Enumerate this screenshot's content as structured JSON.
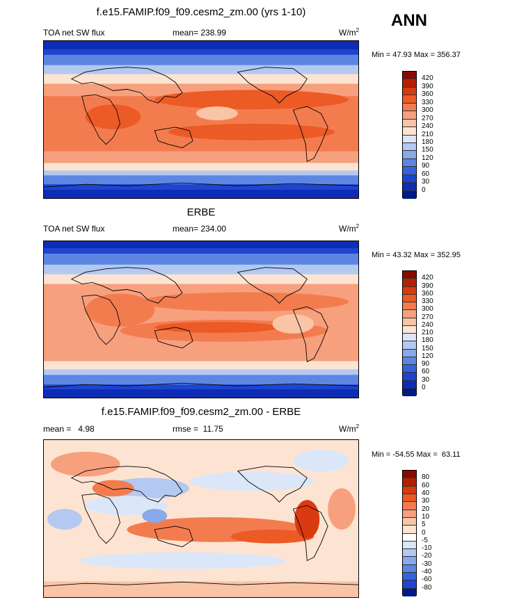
{
  "season": "ANN",
  "panels": [
    {
      "id": "model",
      "title": "f.e15.FAMIP.f09_f09.cesm2_zm.00 (yrs 1-10)",
      "variable": "TOA net SW flux",
      "stat_text": "mean= 238.99",
      "units": "W/m",
      "units_sup": "2",
      "minmax": "Min =  47.93 Max = 356.37",
      "colorbar": {
        "labels": [
          "420",
          "390",
          "360",
          "330",
          "300",
          "270",
          "240",
          "210",
          "180",
          "150",
          "120",
          "90",
          "60",
          "30",
          "0"
        ],
        "colors": [
          "#8b0a00",
          "#b71f02",
          "#d93a0f",
          "#ec5a26",
          "#f37c4f",
          "#f7a07e",
          "#fac4a7",
          "#fde4d2",
          "#dbe6f8",
          "#b3c9f1",
          "#88a9ea",
          "#5d86e3",
          "#3563dc",
          "#1d45d0",
          "#0e2cb5",
          "#001a86"
        ]
      }
    },
    {
      "id": "obs",
      "title": "ERBE",
      "variable": "TOA net SW flux",
      "stat_text": "mean= 234.00",
      "units": "W/m",
      "units_sup": "2",
      "minmax": "Min =  43.32 Max = 352.95",
      "colorbar": {
        "labels": [
          "420",
          "390",
          "360",
          "330",
          "300",
          "270",
          "240",
          "210",
          "180",
          "150",
          "120",
          "90",
          "60",
          "30",
          "0"
        ],
        "colors": [
          "#8b0a00",
          "#b71f02",
          "#d93a0f",
          "#ec5a26",
          "#f37c4f",
          "#f7a07e",
          "#fac4a7",
          "#fde4d2",
          "#dbe6f8",
          "#b3c9f1",
          "#88a9ea",
          "#5d86e3",
          "#3563dc",
          "#1d45d0",
          "#0e2cb5",
          "#001a86"
        ]
      }
    },
    {
      "id": "diff",
      "title": "f.e15.FAMIP.f09_f09.cesm2_zm.00 - ERBE",
      "left_text": "mean =   4.98",
      "stat_text": "rmse =  11.75",
      "units": "W/m",
      "units_sup": "2",
      "minmax": "Min = -54.55 Max =  63.11",
      "colorbar": {
        "labels": [
          "80",
          "60",
          "40",
          "30",
          "20",
          "10",
          "5",
          "0",
          "-5",
          "-10",
          "-20",
          "-30",
          "-40",
          "-60",
          "-80"
        ],
        "colors": [
          "#8b0a00",
          "#b71f02",
          "#d93a0f",
          "#ec5a26",
          "#f37c4f",
          "#f7a07e",
          "#fac4a7",
          "#fde4d2",
          "#ffffff",
          "#dbe6f8",
          "#b3c9f1",
          "#88a9ea",
          "#5d86e3",
          "#3563dc",
          "#1d45d0",
          "#001a86"
        ]
      }
    }
  ]
}
